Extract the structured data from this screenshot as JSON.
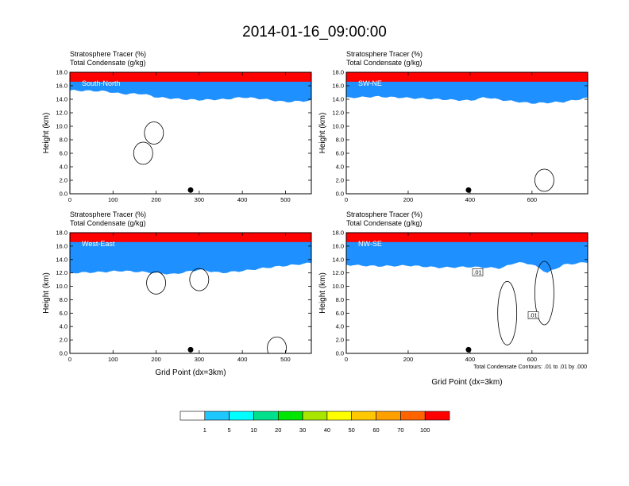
{
  "title": "2014-01-16_09:00:00",
  "panel_title_line1": "Stratosphere Tracer   (%)",
  "panel_title_line2": "Total Condensate   (g/kg)",
  "ylabel": "Height (km)",
  "xlabel": "Grid Point (dx=3km)",
  "contour_note": "Total Condensate Contours: .01 to .01 by .000",
  "colorbar": {
    "labels": [
      "1",
      "5",
      "10",
      "20",
      "30",
      "40",
      "50",
      "60",
      "70",
      "100"
    ],
    "colors": [
      "#ffffff",
      "#1e90ff",
      "#1ec8ff",
      "#00ffff",
      "#00e08c",
      "#00e600",
      "#a8e600",
      "#ffff00",
      "#ffc800",
      "#ffa000",
      "#ff6400",
      "#ff0000"
    ]
  },
  "chart_data": [
    {
      "type": "heatmap",
      "label": "South-North",
      "xlim": [
        0,
        560
      ],
      "ylim": [
        0,
        18
      ],
      "xticks": [
        0,
        100,
        200,
        300,
        400,
        500
      ],
      "yticks": [
        0.0,
        2.0,
        4.0,
        6.0,
        8.0,
        10.0,
        12.0,
        14.0,
        16.0,
        18.0
      ],
      "marker_x": 280,
      "tracer_profile": {
        "x": [
          0,
          80,
          120,
          170,
          200,
          260,
          300,
          360,
          400,
          440,
          500,
          560
        ],
        "base_km": [
          15.3,
          15.2,
          14.8,
          14.8,
          14.3,
          14.0,
          13.9,
          14.0,
          14.3,
          14.1,
          13.6,
          13.8
        ]
      },
      "contour_labels": []
    },
    {
      "type": "heatmap",
      "label": "SW-NE",
      "xlim": [
        0,
        780
      ],
      "ylim": [
        0,
        18
      ],
      "xticks": [
        0,
        200,
        400,
        600
      ],
      "yticks": [
        0.0,
        2.0,
        4.0,
        6.0,
        8.0,
        10.0,
        12.0,
        14.0,
        16.0,
        18.0
      ],
      "marker_x": 395,
      "tracer_profile": {
        "x": [
          0,
          100,
          200,
          300,
          400,
          450,
          500,
          600,
          700,
          780
        ],
        "base_km": [
          14.2,
          14.4,
          14.2,
          14.0,
          13.8,
          14.3,
          13.9,
          13.4,
          13.6,
          14.2
        ]
      },
      "contour_labels": []
    },
    {
      "type": "heatmap",
      "label": "West-East",
      "xlim": [
        0,
        560
      ],
      "ylim": [
        0,
        18
      ],
      "xticks": [
        0,
        100,
        200,
        300,
        400,
        500
      ],
      "yticks": [
        0.0,
        2.0,
        4.0,
        6.0,
        8.0,
        10.0,
        12.0,
        14.0,
        16.0,
        18.0
      ],
      "marker_x": 280,
      "tracer_profile": {
        "x": [
          0,
          60,
          120,
          180,
          240,
          300,
          350,
          400,
          460,
          520,
          560
        ],
        "base_km": [
          12.0,
          12.1,
          12.3,
          12.1,
          11.8,
          12.5,
          12.0,
          12.3,
          12.8,
          13.2,
          13.5
        ]
      },
      "contour_labels": []
    },
    {
      "type": "heatmap",
      "label": "NW-SE",
      "xlim": [
        0,
        780
      ],
      "ylim": [
        0,
        18
      ],
      "xticks": [
        0,
        200,
        400,
        600
      ],
      "yticks": [
        0.0,
        2.0,
        4.0,
        6.0,
        8.0,
        10.0,
        12.0,
        14.0,
        16.0,
        18.0
      ],
      "marker_x": 395,
      "tracer_profile": {
        "x": [
          0,
          100,
          200,
          300,
          400,
          500,
          550,
          600,
          650,
          700,
          780
        ],
        "base_km": [
          13.2,
          13.0,
          13.1,
          12.8,
          12.9,
          12.7,
          13.6,
          13.3,
          12.0,
          13.2,
          13.6
        ]
      },
      "contour_labels": [
        ".01",
        ".01"
      ]
    }
  ]
}
